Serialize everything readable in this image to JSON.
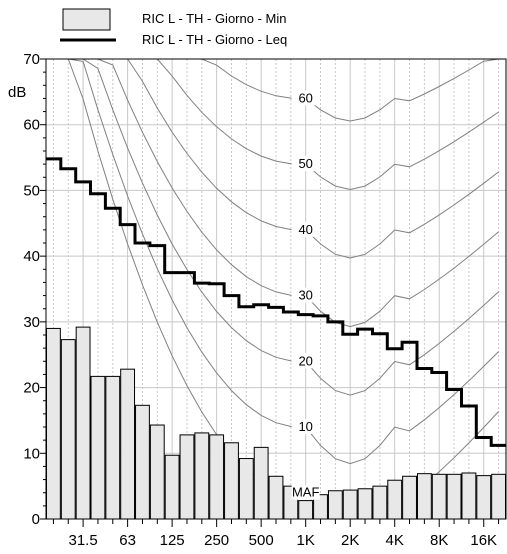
{
  "chart_data": {
    "type": "bar",
    "title": "",
    "ylabel": "dB",
    "xlabel": "",
    "ylim": [
      0,
      70
    ],
    "yticks": [
      0,
      10,
      20,
      30,
      40,
      50,
      60,
      70
    ],
    "grid": true,
    "legend_position": "top",
    "colors": {
      "bars_fill": "#e8e8e8",
      "bars_stroke": "#000000",
      "leq_line": "#000000",
      "contours": "#808080",
      "grid": "#c8c8c8"
    },
    "x_tick_labels": [
      "31.5",
      "63",
      "125",
      "250",
      "500",
      "1K",
      "2K",
      "4K",
      "8K",
      "16K"
    ],
    "bands": [
      "20",
      "25",
      "31.5",
      "40",
      "50",
      "63",
      "80",
      "100",
      "125",
      "160",
      "200",
      "250",
      "315",
      "400",
      "500",
      "630",
      "800",
      "1K",
      "1.25K",
      "1.6K",
      "2K",
      "2.5K",
      "3.15K",
      "4K",
      "5K",
      "6.3K",
      "8K",
      "10K",
      "12.5K",
      "16K",
      "20K"
    ],
    "series": [
      {
        "name": "RIC L - TH - Giorno - Min",
        "kind": "bar",
        "values": [
          29.0,
          27.3,
          29.2,
          21.7,
          21.7,
          22.8,
          17.3,
          14.3,
          9.7,
          12.8,
          13.1,
          12.8,
          11.6,
          9.2,
          10.9,
          6.5,
          5.0,
          2.8,
          3.7,
          4.3,
          4.4,
          4.6,
          5.0,
          5.9,
          6.5,
          6.9,
          6.8,
          6.8,
          7.0,
          6.6,
          6.8
        ]
      },
      {
        "name": "RIC L - TH - Giorno - Leq",
        "kind": "line",
        "values": [
          54.8,
          53.3,
          51.3,
          49.5,
          47.3,
          44.8,
          42.0,
          41.6,
          37.5,
          37.5,
          35.9,
          35.8,
          34.0,
          32.3,
          32.6,
          32.2,
          31.5,
          31.1,
          30.9,
          30.0,
          28.1,
          28.9,
          28.2,
          25.9,
          26.9,
          22.9,
          22.3,
          19.7,
          17.2,
          12.4,
          11.2
        ]
      }
    ],
    "contour_labels": [
      "60",
      "50",
      "40",
      "30",
      "20",
      "10",
      "MAF"
    ]
  }
}
